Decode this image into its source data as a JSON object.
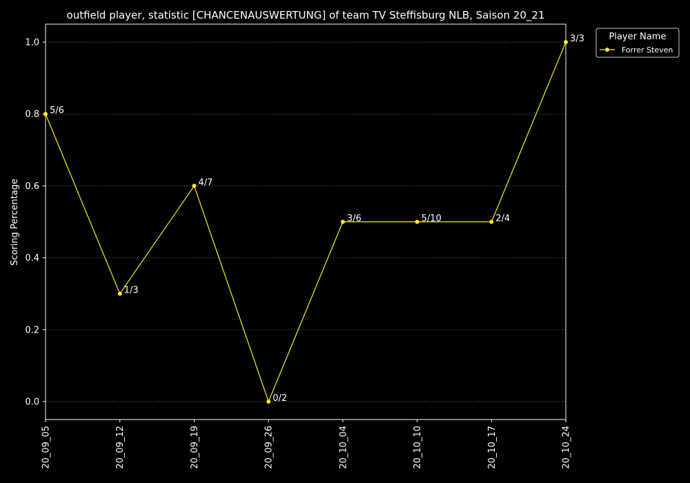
{
  "chart_data": {
    "type": "line",
    "title": "outfield player, statistic [CHANCENAUSWERTUNG] of team TV Steffisburg NLB, Saison 20_21",
    "xlabel": "",
    "ylabel": "Scoring Percentage",
    "categories": [
      "20_09_05",
      "20_09_12",
      "20_09_19",
      "20_09_26",
      "20_10_04",
      "20_10_10",
      "20_10_17",
      "20_10_24"
    ],
    "series": [
      {
        "name": "Forrer Steven",
        "values": [
          0.8,
          0.3,
          0.6,
          0.0,
          0.5,
          0.5,
          0.5,
          1.0
        ],
        "labels": [
          "5/6",
          "1/3",
          "4/7",
          "0/2",
          "3/6",
          "5/10",
          "2/4",
          "3/3"
        ],
        "color": "#ffee22"
      }
    ],
    "ylim": [
      -0.05,
      1.05
    ],
    "yticks": [
      0.0,
      0.2,
      0.4,
      0.6,
      0.8,
      1.0
    ],
    "ytick_labels": [
      "0.0",
      "0.2",
      "0.4",
      "0.6",
      "0.8",
      "1.0"
    ],
    "grid": true,
    "legend_title": "Player Name",
    "legend_position": "outside-top-right",
    "background_color": "#000000",
    "text_color": "#ffffff",
    "grid_color": "#555555"
  }
}
